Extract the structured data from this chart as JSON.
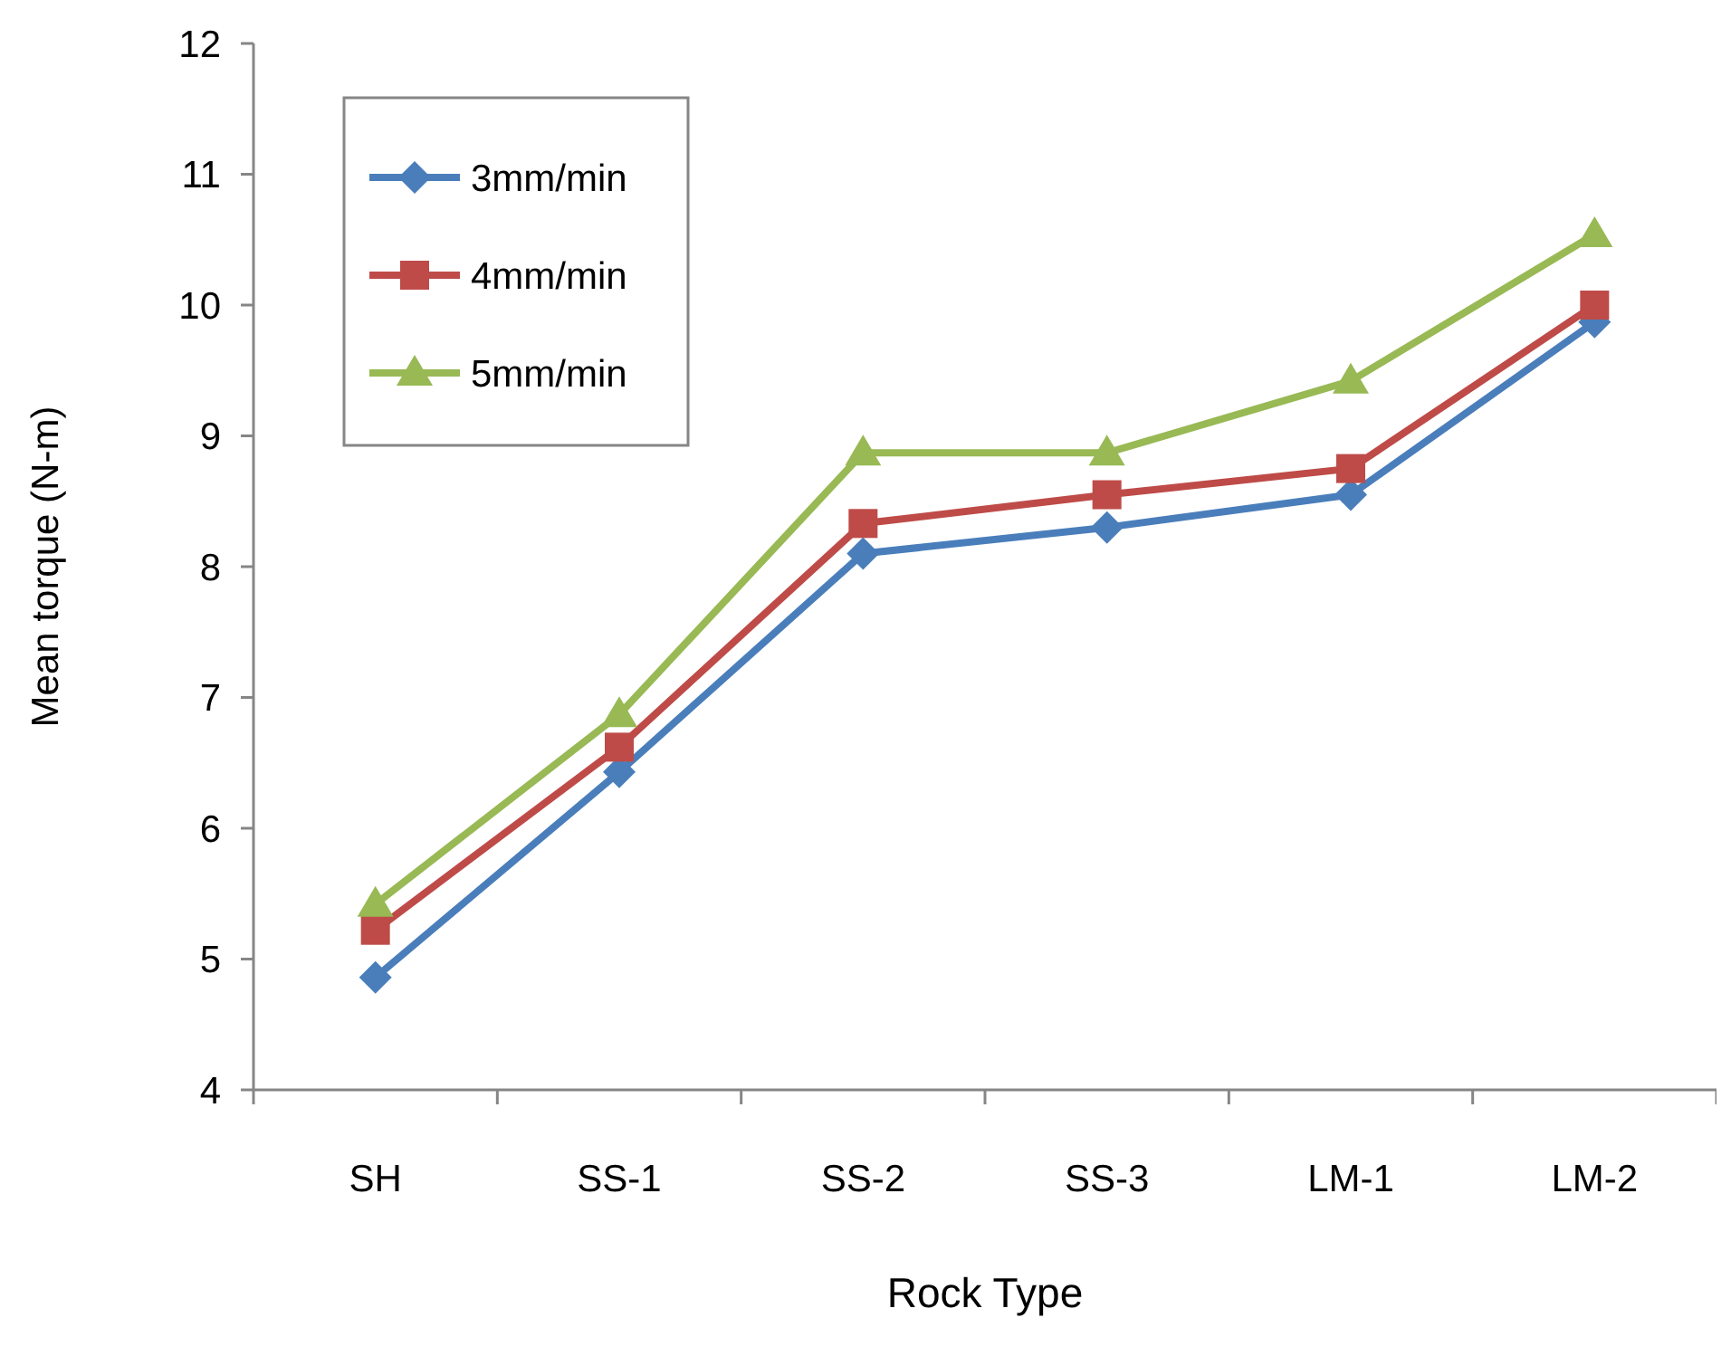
{
  "chart_data": {
    "type": "line",
    "xlabel": "Rock Type",
    "ylabel": "Mean torque (N-m)",
    "categories": [
      "SH",
      "SS-1",
      "SS-2",
      "SS-3",
      "LM-1",
      "LM-2"
    ],
    "ylim": [
      4,
      12
    ],
    "yticks": [
      4,
      5,
      6,
      7,
      8,
      9,
      10,
      11,
      12
    ],
    "grid": false,
    "legend": "top left",
    "line_style": "solid",
    "series": [
      {
        "name": "3mm/min",
        "color": "#4a7ebb",
        "marker": "diamond",
        "values": [
          4.86,
          6.43,
          8.1,
          8.3,
          8.55,
          9.87
        ]
      },
      {
        "name": "4mm/min",
        "color": "#be4b48",
        "marker": "square",
        "values": [
          5.22,
          6.62,
          8.33,
          8.55,
          8.75,
          10.0
        ]
      },
      {
        "name": "5mm/min",
        "color": "#98b954",
        "marker": "triangle",
        "values": [
          5.42,
          6.87,
          8.87,
          8.87,
          9.42,
          10.54
        ]
      }
    ]
  }
}
